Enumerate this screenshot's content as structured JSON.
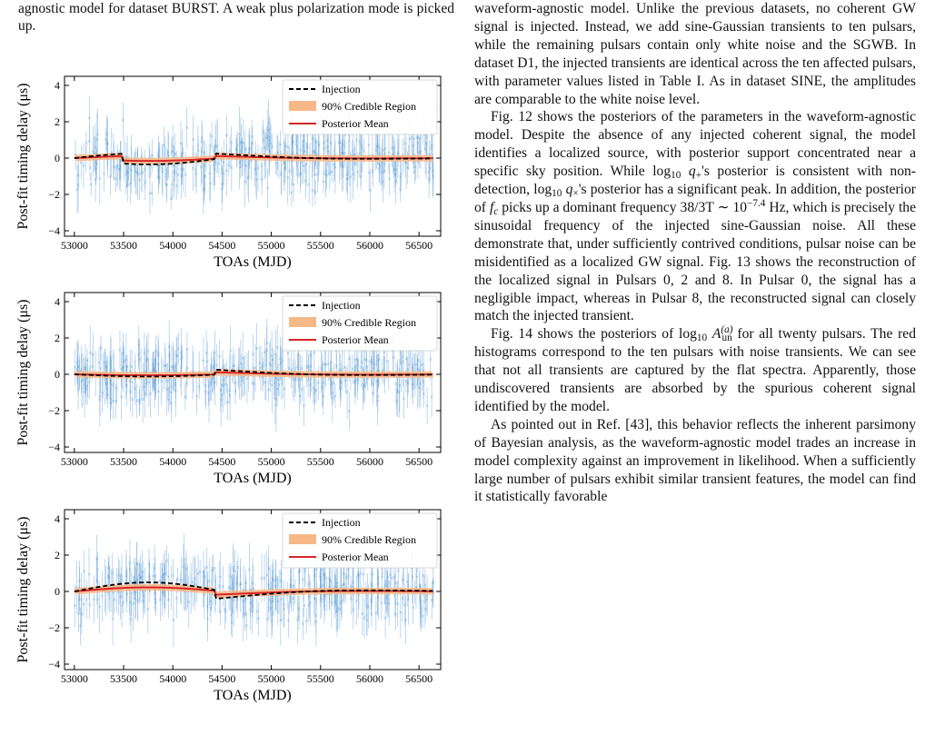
{
  "left_caption": "agnostic model for dataset BURST. A weak plus polarization mode is picked up.",
  "plots": [
    {
      "ylabel": "Post-fit timing delay (μs)",
      "xlabel": "TOAs (MJD)",
      "legend": [
        "Injection",
        "90% Credible Region",
        "Posterior Mean"
      ],
      "xticks": [
        "53000",
        "53500",
        "54000",
        "54500",
        "55000",
        "55500",
        "56000",
        "56500"
      ],
      "yticks": [
        "4",
        "2",
        "0",
        "−2",
        "−4"
      ]
    },
    {
      "ylabel": "Post-fit timing delay (μs)",
      "xlabel": "TOAs (MJD)",
      "legend": [
        "Injection",
        "90% Credible Region",
        "Posterior Mean"
      ],
      "xticks": [
        "53000",
        "53500",
        "54000",
        "54500",
        "55000",
        "55500",
        "56000",
        "56500"
      ],
      "yticks": [
        "4",
        "2",
        "0",
        "−2",
        "−4"
      ]
    },
    {
      "ylabel": "Post-fit timing delay (μs)",
      "xlabel": "TOAs (MJD)",
      "legend": [
        "Injection",
        "90% Credible Region",
        "Posterior Mean"
      ],
      "xticks": [
        "53000",
        "53500",
        "54000",
        "54500",
        "55000",
        "55500",
        "56000",
        "56500"
      ],
      "yticks": [
        "4",
        "2",
        "0",
        "−2",
        "−4"
      ]
    }
  ],
  "right_text": {
    "p1": "waveform-agnostic model. Unlike the previous datasets, no coherent GW signal is injected. Instead, we add sine-Gaussian transients to ten pulsars, while the remaining pulsars contain only white noise and the SGWB. In dataset D1, the injected transients are identical across the ten affected pulsars, with parameter values listed in Table I. As in dataset SINE, the amplitudes are comparable to the white noise level.",
    "p2a": "Fig. 12 shows the posteriors of the parameters in the waveform-agnostic model. Despite the absence of any injected coherent signal, the model identifies a localized source, with posterior support concentrated near a specific sky position. While ",
    "p2b": "'s posterior is consistent with non-detection, ",
    "p2c": "'s posterior has a significant peak. In addition, the posterior of ",
    "p2d": " picks up a dominant frequency ",
    "p2e": " Hz, which is precisely the sinusoidal frequency of the injected sine-Gaussian noise. All these demonstrate that, under sufficiently contrived conditions, pulsar noise can be misidentified as a localized GW signal. Fig. 13 shows the reconstruction of the localized signal in Pulsars 0, 2 and 8. In Pulsar 0, the signal has a negligible impact, whereas in Pulsar 8, the reconstructed signal can closely match the injected transient.",
    "p3a": "Fig. 14 shows the posteriors of ",
    "p3b": " for all twenty pulsars. The red histograms correspond to the ten pulsars with noise transients. We can see that not all transients are captured by the flat spectra. Apparently, those undiscovered transients are absorbed by the spurious coherent signal identified by the model.",
    "p4": "As pointed out in Ref. [43], this behavior reflects the inherent parsimony of Bayesian analysis, as the waveform-agnostic model trades an increase in model complexity against an improvement in likelihood. When a sufficiently large number of pulsars exhibit similar transient features, the model can find it statistically favorable",
    "m_log": "log",
    "m_10": "10",
    "m_q": "q",
    "m_plus": "+",
    "m_cross": "×",
    "m_f": "f",
    "m_c": "c",
    "m_freq": "38/3T ∼ 10",
    "m_exp": "−7.4",
    "m_A": "A",
    "m_un": "un",
    "m_a": "(a)"
  },
  "colors": {
    "injection": "#000000",
    "credible": "#f7b887",
    "mean": "#d62728",
    "data": "#5b9bd5"
  }
}
